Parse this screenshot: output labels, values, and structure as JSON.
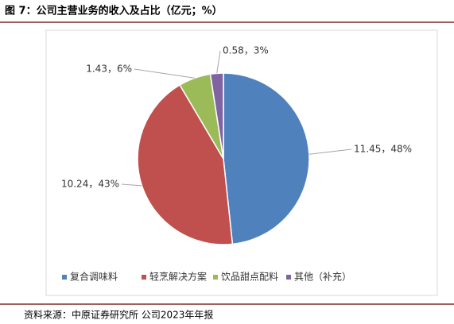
{
  "chart_data": {
    "type": "pie",
    "title": "图 7：公司主营业务的收入及占比（亿元；%）",
    "source": "资料来源：中原证券研究所 公司2023年年报",
    "categories": [
      "复合调味料",
      "轻烹解决方案",
      "饮品甜点配料",
      "其他（补充）"
    ],
    "values": [
      11.45,
      10.24,
      1.43,
      0.58
    ],
    "value_labels": [
      "11.45，48%",
      "10.24，43%",
      "1.43，6%",
      "0.58，3%"
    ],
    "colors": [
      "#4f81bd",
      "#c0504d",
      "#9bbb59",
      "#8064a2"
    ],
    "legend": "bottom"
  }
}
